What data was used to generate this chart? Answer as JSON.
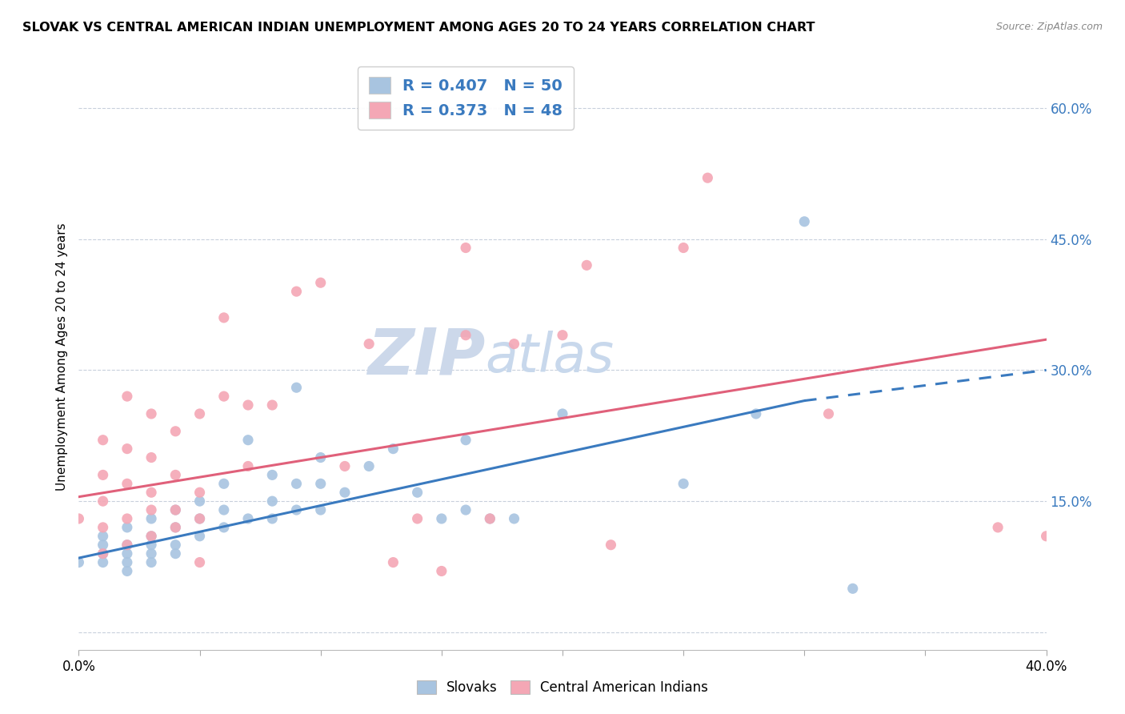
{
  "title": "SLOVAK VS CENTRAL AMERICAN INDIAN UNEMPLOYMENT AMONG AGES 20 TO 24 YEARS CORRELATION CHART",
  "source": "Source: ZipAtlas.com",
  "ylabel": "Unemployment Among Ages 20 to 24 years",
  "xlim": [
    0.0,
    0.4
  ],
  "ylim": [
    -0.02,
    0.65
  ],
  "yticks": [
    0.0,
    0.15,
    0.3,
    0.45,
    0.6
  ],
  "ytick_labels": [
    "",
    "15.0%",
    "30.0%",
    "45.0%",
    "60.0%"
  ],
  "xticks": [
    0.0,
    0.05,
    0.1,
    0.15,
    0.2,
    0.25,
    0.3,
    0.35,
    0.4
  ],
  "xtick_labels": [
    "0.0%",
    "",
    "",
    "",
    "",
    "",
    "",
    "",
    "40.0%"
  ],
  "slovak_R": 0.407,
  "slovak_N": 50,
  "central_american_R": 0.373,
  "central_american_N": 48,
  "slovak_color": "#a8c4e0",
  "central_american_color": "#f4a7b5",
  "slovak_line_color": "#3a7abf",
  "central_american_line_color": "#e0607a",
  "legend_text_color": "#3a7abf",
  "watermark_zip": "ZIP",
  "watermark_atlas": "atlas",
  "watermark_color": "#ccd8ea",
  "slovak_points": [
    [
      0.0,
      0.08
    ],
    [
      0.01,
      0.09
    ],
    [
      0.01,
      0.1
    ],
    [
      0.01,
      0.11
    ],
    [
      0.01,
      0.08
    ],
    [
      0.02,
      0.07
    ],
    [
      0.02,
      0.09
    ],
    [
      0.02,
      0.1
    ],
    [
      0.02,
      0.12
    ],
    [
      0.02,
      0.08
    ],
    [
      0.03,
      0.08
    ],
    [
      0.03,
      0.1
    ],
    [
      0.03,
      0.11
    ],
    [
      0.03,
      0.09
    ],
    [
      0.03,
      0.13
    ],
    [
      0.04,
      0.1
    ],
    [
      0.04,
      0.12
    ],
    [
      0.04,
      0.09
    ],
    [
      0.04,
      0.14
    ],
    [
      0.05,
      0.11
    ],
    [
      0.05,
      0.13
    ],
    [
      0.05,
      0.15
    ],
    [
      0.06,
      0.12
    ],
    [
      0.06,
      0.14
    ],
    [
      0.06,
      0.17
    ],
    [
      0.07,
      0.13
    ],
    [
      0.07,
      0.22
    ],
    [
      0.08,
      0.13
    ],
    [
      0.08,
      0.15
    ],
    [
      0.08,
      0.18
    ],
    [
      0.09,
      0.14
    ],
    [
      0.09,
      0.17
    ],
    [
      0.09,
      0.28
    ],
    [
      0.1,
      0.14
    ],
    [
      0.1,
      0.17
    ],
    [
      0.1,
      0.2
    ],
    [
      0.11,
      0.16
    ],
    [
      0.12,
      0.19
    ],
    [
      0.13,
      0.21
    ],
    [
      0.14,
      0.16
    ],
    [
      0.15,
      0.13
    ],
    [
      0.16,
      0.14
    ],
    [
      0.16,
      0.22
    ],
    [
      0.17,
      0.13
    ],
    [
      0.18,
      0.13
    ],
    [
      0.2,
      0.25
    ],
    [
      0.25,
      0.17
    ],
    [
      0.28,
      0.25
    ],
    [
      0.3,
      0.47
    ],
    [
      0.32,
      0.05
    ]
  ],
  "central_american_points": [
    [
      0.0,
      0.13
    ],
    [
      0.01,
      0.09
    ],
    [
      0.01,
      0.12
    ],
    [
      0.01,
      0.15
    ],
    [
      0.01,
      0.18
    ],
    [
      0.01,
      0.22
    ],
    [
      0.02,
      0.1
    ],
    [
      0.02,
      0.13
    ],
    [
      0.02,
      0.17
    ],
    [
      0.02,
      0.21
    ],
    [
      0.02,
      0.27
    ],
    [
      0.03,
      0.11
    ],
    [
      0.03,
      0.14
    ],
    [
      0.03,
      0.16
    ],
    [
      0.03,
      0.2
    ],
    [
      0.03,
      0.25
    ],
    [
      0.04,
      0.12
    ],
    [
      0.04,
      0.14
    ],
    [
      0.04,
      0.18
    ],
    [
      0.04,
      0.23
    ],
    [
      0.05,
      0.08
    ],
    [
      0.05,
      0.13
    ],
    [
      0.05,
      0.16
    ],
    [
      0.05,
      0.25
    ],
    [
      0.06,
      0.27
    ],
    [
      0.06,
      0.36
    ],
    [
      0.07,
      0.19
    ],
    [
      0.07,
      0.26
    ],
    [
      0.08,
      0.26
    ],
    [
      0.09,
      0.39
    ],
    [
      0.1,
      0.4
    ],
    [
      0.11,
      0.19
    ],
    [
      0.12,
      0.33
    ],
    [
      0.13,
      0.08
    ],
    [
      0.14,
      0.13
    ],
    [
      0.15,
      0.07
    ],
    [
      0.16,
      0.34
    ],
    [
      0.16,
      0.44
    ],
    [
      0.17,
      0.13
    ],
    [
      0.18,
      0.33
    ],
    [
      0.2,
      0.34
    ],
    [
      0.21,
      0.42
    ],
    [
      0.22,
      0.1
    ],
    [
      0.25,
      0.44
    ],
    [
      0.26,
      0.52
    ],
    [
      0.31,
      0.25
    ],
    [
      0.38,
      0.12
    ],
    [
      0.4,
      0.11
    ]
  ],
  "slovak_line": [
    [
      0.0,
      0.085
    ],
    [
      0.3,
      0.265
    ]
  ],
  "slovak_line_ext": [
    [
      0.3,
      0.265
    ],
    [
      0.4,
      0.3
    ]
  ],
  "central_american_line": [
    [
      0.0,
      0.155
    ],
    [
      0.4,
      0.335
    ]
  ]
}
